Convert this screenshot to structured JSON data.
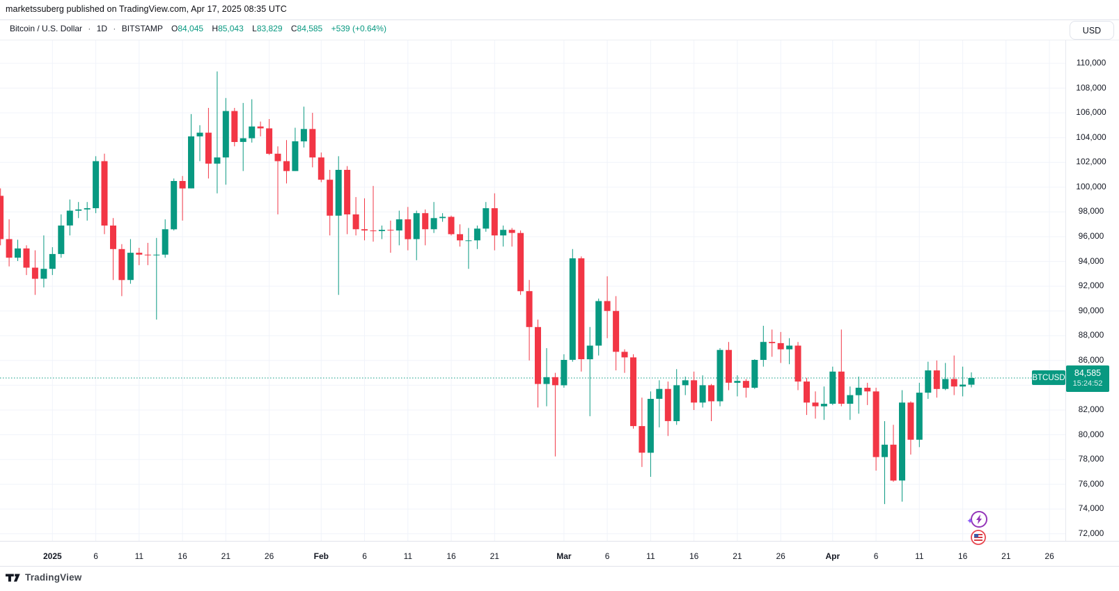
{
  "attribution": "marketssuberg published on TradingView.com, Apr 17, 2025 08:35 UTC",
  "legend": {
    "symbol_title": "Bitcoin / U.S. Dollar",
    "separator": "·",
    "interval": "1D",
    "exchange": "BITSTAMP",
    "open_label": "O",
    "open": "84,045",
    "high_label": "H",
    "high": "85,043",
    "low_label": "L",
    "low": "83,829",
    "close_label": "C",
    "close": "84,585",
    "change": "+539 (+0.64%)"
  },
  "currency_button": "USD",
  "price_badge": {
    "symbol": "BTCUSD",
    "price": "84,585",
    "countdown": "15:24:52"
  },
  "footer": {
    "brand": "TradingView"
  },
  "colors": {
    "up": "#089981",
    "down": "#F23645",
    "grid": "#F0F3FA",
    "accent": "#089981",
    "text": "#131722"
  },
  "chart_data": {
    "type": "candlestick",
    "title": "Bitcoin / U.S. Dollar",
    "symbol": "BTCUSD",
    "interval": "1D",
    "exchange": "BITSTAMP",
    "last_price": 84585,
    "grid": true,
    "y_axis": {
      "min": 72000,
      "max": 110000,
      "step": 2000,
      "labels": [
        110000,
        108000,
        106000,
        104000,
        102000,
        100000,
        98000,
        96000,
        94000,
        92000,
        90000,
        88000,
        86000,
        82000,
        80000,
        78000,
        76000,
        74000,
        72000
      ]
    },
    "x_ticks": [
      {
        "label": "2025",
        "day_index": 6,
        "bold": true
      },
      {
        "label": "6",
        "day_index": 11,
        "bold": false
      },
      {
        "label": "11",
        "day_index": 16,
        "bold": false
      },
      {
        "label": "16",
        "day_index": 21,
        "bold": false
      },
      {
        "label": "21",
        "day_index": 26,
        "bold": false
      },
      {
        "label": "26",
        "day_index": 31,
        "bold": false
      },
      {
        "label": "Feb",
        "day_index": 37,
        "bold": true
      },
      {
        "label": "6",
        "day_index": 42,
        "bold": false
      },
      {
        "label": "11",
        "day_index": 47,
        "bold": false
      },
      {
        "label": "16",
        "day_index": 52,
        "bold": false
      },
      {
        "label": "21",
        "day_index": 57,
        "bold": false
      },
      {
        "label": "Mar",
        "day_index": 65,
        "bold": true
      },
      {
        "label": "6",
        "day_index": 70,
        "bold": false
      },
      {
        "label": "11",
        "day_index": 75,
        "bold": false
      },
      {
        "label": "16",
        "day_index": 80,
        "bold": false
      },
      {
        "label": "21",
        "day_index": 85,
        "bold": false
      },
      {
        "label": "26",
        "day_index": 90,
        "bold": false
      },
      {
        "label": "Apr",
        "day_index": 96,
        "bold": true
      },
      {
        "label": "6",
        "day_index": 101,
        "bold": false
      },
      {
        "label": "11",
        "day_index": 106,
        "bold": false
      },
      {
        "label": "16",
        "day_index": 111,
        "bold": false
      },
      {
        "label": "21",
        "day_index": 116,
        "bold": false
      },
      {
        "label": "26",
        "day_index": 121,
        "bold": false
      }
    ],
    "candles": [
      [
        "Dec 26",
        99300,
        99900,
        95300,
        95800
      ],
      [
        "Dec 27",
        95800,
        97400,
        93600,
        94300
      ],
      [
        "Dec 28",
        94300,
        95750,
        94030,
        95050
      ],
      [
        "Dec 29",
        95050,
        95300,
        92900,
        93500
      ],
      [
        "Dec 30",
        93500,
        94900,
        91300,
        92600
      ],
      [
        "Dec 31",
        92600,
        96100,
        91900,
        93400
      ],
      [
        "Jan 1",
        93400,
        95150,
        92900,
        94600
      ],
      [
        "Jan 2",
        94600,
        97800,
        94300,
        96900
      ],
      [
        "Jan 3",
        96900,
        99000,
        96100,
        98100
      ],
      [
        "Jan 4",
        98100,
        98800,
        97500,
        98200
      ],
      [
        "Jan 5",
        98200,
        98800,
        97300,
        98300
      ],
      [
        "Jan 6",
        98300,
        102500,
        97900,
        102100
      ],
      [
        "Jan 7",
        102100,
        102700,
        96200,
        96900
      ],
      [
        "Jan 8",
        96900,
        97500,
        92500,
        95000
      ],
      [
        "Jan 9",
        95000,
        95400,
        91200,
        92500
      ],
      [
        "Jan 10",
        92500,
        95800,
        92200,
        94700
      ],
      [
        "Jan 11",
        94700,
        95100,
        93700,
        94550
      ],
      [
        "Jan 12",
        94550,
        95500,
        93700,
        94500
      ],
      [
        "Jan 13",
        94500,
        95900,
        89300,
        94550
      ],
      [
        "Jan 14",
        94550,
        97400,
        94300,
        96600
      ],
      [
        "Jan 15",
        96600,
        100700,
        96500,
        100500
      ],
      [
        "Jan 16",
        100500,
        100900,
        97300,
        99900
      ],
      [
        "Jan 17",
        99900,
        105900,
        99900,
        104100
      ],
      [
        "Jan 18",
        104100,
        105000,
        102100,
        104400
      ],
      [
        "Jan 19",
        104400,
        106400,
        100700,
        101900
      ],
      [
        "Jan 20",
        101900,
        109350,
        99500,
        102400
      ],
      [
        "Jan 21",
        102400,
        107200,
        100200,
        106150
      ],
      [
        "Jan 22",
        106150,
        106400,
        103300,
        103650
      ],
      [
        "Jan 23",
        103650,
        106800,
        101300,
        103950
      ],
      [
        "Jan 24",
        103950,
        107100,
        103600,
        104900
      ],
      [
        "Jan 25",
        104900,
        105300,
        104100,
        104750
      ],
      [
        "Jan 26",
        104750,
        105500,
        102600,
        102700
      ],
      [
        "Jan 27",
        102700,
        103300,
        97800,
        102100
      ],
      [
        "Jan 28",
        102100,
        103800,
        100300,
        101300
      ],
      [
        "Jan 29",
        101300,
        104800,
        101300,
        103700
      ],
      [
        "Jan 30",
        103700,
        106500,
        103200,
        104700
      ],
      [
        "Jan 31",
        104700,
        106000,
        101600,
        102400
      ],
      [
        "Feb 1",
        102400,
        102800,
        100400,
        100600
      ],
      [
        "Feb 2",
        100600,
        101400,
        96100,
        97700
      ],
      [
        "Feb 3",
        97700,
        102500,
        91300,
        101400
      ],
      [
        "Feb 4",
        101400,
        101700,
        96200,
        97800
      ],
      [
        "Feb 5",
        97800,
        99200,
        96100,
        96600
      ],
      [
        "Feb 6",
        96600,
        99100,
        95700,
        96500
      ],
      [
        "Feb 7",
        96500,
        100100,
        95600,
        96450
      ],
      [
        "Feb 8",
        96450,
        96900,
        95800,
        96550
      ],
      [
        "Feb 9",
        96550,
        97300,
        94700,
        96500
      ],
      [
        "Feb 10",
        96500,
        98100,
        95300,
        97400
      ],
      [
        "Feb 11",
        97400,
        98400,
        94900,
        95800
      ],
      [
        "Feb 12",
        95800,
        98100,
        94100,
        97900
      ],
      [
        "Feb 13",
        97900,
        98200,
        95300,
        96600
      ],
      [
        "Feb 14",
        96600,
        98800,
        96300,
        97500
      ],
      [
        "Feb 15",
        97500,
        97900,
        97200,
        97600
      ],
      [
        "Feb 16",
        97600,
        97700,
        96100,
        96200
      ],
      [
        "Feb 17",
        96200,
        97000,
        95200,
        95700
      ],
      [
        "Feb 18",
        95700,
        96700,
        93400,
        95700
      ],
      [
        "Feb 19",
        95700,
        96900,
        95000,
        96650
      ],
      [
        "Feb 20",
        96650,
        98800,
        96400,
        98300
      ],
      [
        "Feb 21",
        98300,
        99500,
        94900,
        96100
      ],
      [
        "Feb 22",
        96100,
        96900,
        95200,
        96550
      ],
      [
        "Feb 23",
        96550,
        96700,
        95200,
        96300
      ],
      [
        "Feb 24",
        96300,
        96500,
        91300,
        91600
      ],
      [
        "Feb 25",
        91600,
        92500,
        86000,
        88700
      ],
      [
        "Feb 26",
        88700,
        89300,
        82200,
        84100
      ],
      [
        "Feb 27",
        84100,
        87000,
        82300,
        84650
      ],
      [
        "Feb 28",
        84650,
        85000,
        78250,
        84000
      ],
      [
        "Mar 1",
        84000,
        86500,
        83800,
        86050
      ],
      [
        "Mar 2",
        86050,
        95000,
        85900,
        94250
      ],
      [
        "Mar 3",
        94250,
        94400,
        85100,
        86100
      ],
      [
        "Mar 4",
        86100,
        88700,
        81500,
        87200
      ],
      [
        "Mar 5",
        87200,
        91000,
        86400,
        90800
      ],
      [
        "Mar 6",
        90800,
        92800,
        87800,
        90000
      ],
      [
        "Mar 7",
        90000,
        91200,
        85200,
        86700
      ],
      [
        "Mar 8",
        86700,
        86900,
        85000,
        86250
      ],
      [
        "Mar 9",
        86250,
        86500,
        80500,
        80700
      ],
      [
        "Mar 10",
        80700,
        83000,
        77400,
        78550
      ],
      [
        "Mar 11",
        78550,
        83500,
        76600,
        82900
      ],
      [
        "Mar 12",
        82900,
        84400,
        80600,
        83700
      ],
      [
        "Mar 13",
        83700,
        84300,
        79900,
        81100
      ],
      [
        "Mar 14",
        81100,
        85300,
        80800,
        84000
      ],
      [
        "Mar 15",
        84000,
        84700,
        83200,
        84400
      ],
      [
        "Mar 16",
        84400,
        85100,
        82000,
        82600
      ],
      [
        "Mar 17",
        82600,
        84800,
        82200,
        84000
      ],
      [
        "Mar 18",
        84000,
        84100,
        81100,
        82700
      ],
      [
        "Mar 19",
        82700,
        87000,
        82300,
        86850
      ],
      [
        "Mar 20",
        86850,
        87500,
        83600,
        84200
      ],
      [
        "Mar 21",
        84200,
        84800,
        83100,
        84350
      ],
      [
        "Mar 22",
        84350,
        84500,
        83000,
        83800
      ],
      [
        "Mar 23",
        83800,
        86100,
        83700,
        86050
      ],
      [
        "Mar 24",
        86050,
        88800,
        85500,
        87500
      ],
      [
        "Mar 25",
        87500,
        88500,
        86300,
        87400
      ],
      [
        "Mar 26",
        87400,
        88300,
        85800,
        86900
      ],
      [
        "Mar 27",
        86900,
        87800,
        85700,
        87200
      ],
      [
        "Mar 28",
        87200,
        87500,
        83600,
        84300
      ],
      [
        "Mar 29",
        84300,
        84600,
        81600,
        82600
      ],
      [
        "Mar 30",
        82600,
        83500,
        81300,
        82300
      ],
      [
        "Mar 31",
        82300,
        83900,
        81200,
        82500
      ],
      [
        "Apr 1",
        82500,
        85500,
        82400,
        85100
      ],
      [
        "Apr 2",
        85100,
        88500,
        82300,
        82500
      ],
      [
        "Apr 3",
        82500,
        83900,
        81200,
        83200
      ],
      [
        "Apr 4",
        83200,
        84700,
        81700,
        83800
      ],
      [
        "Apr 5",
        83800,
        84200,
        82400,
        83500
      ],
      [
        "Apr 6",
        83500,
        83800,
        77100,
        78200
      ],
      [
        "Apr 7",
        78200,
        81100,
        74400,
        79200
      ],
      [
        "Apr 8",
        79200,
        80800,
        76200,
        76300
      ],
      [
        "Apr 9",
        76300,
        83600,
        74600,
        82600
      ],
      [
        "Apr 10",
        82600,
        82700,
        78400,
        79600
      ],
      [
        "Apr 11",
        79600,
        84200,
        79000,
        83400
      ],
      [
        "Apr 12",
        83400,
        85900,
        82900,
        85200
      ],
      [
        "Apr 13",
        85200,
        86000,
        83000,
        83700
      ],
      [
        "Apr 14",
        83700,
        85800,
        83600,
        84500
      ],
      [
        "Apr 15",
        84500,
        86400,
        83200,
        83900
      ],
      [
        "Apr 16",
        83900,
        85500,
        83100,
        84050
      ],
      [
        "Apr 17",
        84045,
        85043,
        83829,
        84585
      ]
    ],
    "events": [
      {
        "icon": "lightning-event-icon",
        "color": "#9334B8"
      },
      {
        "icon": "us-flag-event-icon",
        "color": "#E8474F"
      }
    ]
  }
}
